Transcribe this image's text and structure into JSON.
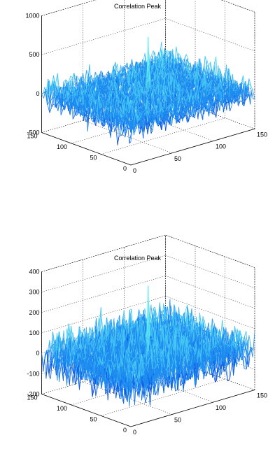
{
  "chart_data": [
    {
      "type": "surface",
      "title": "Correlation Peak",
      "xlabel": "",
      "ylabel": "",
      "zlabel": "",
      "x_range": [
        0,
        150
      ],
      "y_range": [
        0,
        150
      ],
      "z_range": [
        -500,
        1000
      ],
      "x_ticks": [
        "0",
        "50",
        "100",
        "150"
      ],
      "y_ticks": [
        "0",
        "50",
        "100",
        "150"
      ],
      "z_ticks": [
        "-500",
        "0",
        "500",
        "1000"
      ],
      "grid": true,
      "colormap": [
        "#0000c8",
        "#0a5ae6",
        "#1e8cf0",
        "#46c8f5",
        "#64f0f0"
      ],
      "surface": {
        "noise_mean": 0,
        "noise_range": [
          -350,
          300
        ],
        "peak": {
          "x": 75,
          "y": 75,
          "z": 700
        }
      }
    },
    {
      "type": "surface",
      "title": "Correlation Peak",
      "xlabel": "",
      "ylabel": "",
      "zlabel": "",
      "x_range": [
        0,
        150
      ],
      "y_range": [
        0,
        150
      ],
      "z_range": [
        -200,
        400
      ],
      "x_ticks": [
        "0",
        "50",
        "100",
        "150"
      ],
      "y_ticks": [
        "0",
        "50",
        "100",
        "150"
      ],
      "z_ticks": [
        "-200",
        "-100",
        "0",
        "100",
        "200",
        "300",
        "400"
      ],
      "grid": true,
      "colormap": [
        "#0000c8",
        "#0a5ae6",
        "#1e8cf0",
        "#46c8f5",
        "#64f0f0"
      ],
      "surface": {
        "noise_mean": 0,
        "noise_range": [
          -180,
          170
        ],
        "peak": {
          "x": 75,
          "y": 75,
          "z": 320
        }
      }
    }
  ]
}
